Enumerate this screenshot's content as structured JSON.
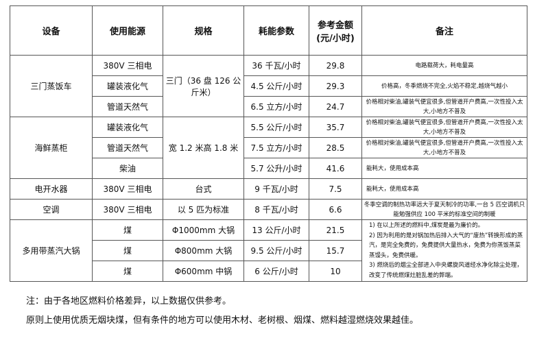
{
  "headers": [
    "设备",
    "使用能源",
    "规格",
    "耗能参数",
    "参考金额",
    "(元/小时)",
    "备注"
  ],
  "groups": [
    {
      "device": "三门蒸饭车",
      "spec": "三门（36 盘 126 公斤米）",
      "rows": [
        {
          "energy": "380V 三相电",
          "param": "36 千瓦/小时",
          "price": "29.8",
          "note": "电路载荷大，耗电量高"
        },
        {
          "energy": "罐装液化气",
          "param": "4.5 公斤/小时",
          "price": "29.3",
          "note": "价格高，冬季燃烧不完全,火焰不稳定,越烧气越小"
        },
        {
          "energy": "管道天然气",
          "param": "6.5 立方/小时",
          "price": "24.7",
          "note": "价格相对柴油,罐装气便宜很多,但管道开户费高,一次性投入太大,小地方不普及"
        }
      ]
    },
    {
      "device": "海鲜蒸柜",
      "spec": "宽 1.2 米高 1.8 米",
      "rows": [
        {
          "energy": "罐装液化气",
          "param": "5.5 公斤/小时",
          "price": "35.7",
          "note": "价格相对柴油,罐装气便宜很多,但管道开户费高,一次性投入太大,小地方不普及"
        },
        {
          "energy": "管道天然气",
          "param": "7.5 立方/小时",
          "price": "28.5",
          "note": "价格相对柴油,罐装气便宜很多,但管道开户费高,一次性投入太大,小地方不普及"
        },
        {
          "energy": "柴油",
          "param": "5.7 公升/小时",
          "price": "41.6",
          "note": "能耗大，使用成本高"
        }
      ]
    },
    {
      "device": "电开水器",
      "spec": "台式",
      "rows": [
        {
          "energy": "380V 三相电",
          "param": "9 千瓦/小时",
          "price": "7.5",
          "note": "能耗大，使用成本高"
        }
      ]
    },
    {
      "device": "空调",
      "spec": "以 5 匹为标准",
      "rows": [
        {
          "energy": "380V 三相电",
          "param": "8 千瓦/小时",
          "price": "6.6",
          "note": "冬季空调的制热功率远大于夏天制冷的功率,一台 5 匹空调机只能勉强供应 100 平米的标准空间的制暖"
        }
      ]
    },
    {
      "device": "多用带蒸汽大锅",
      "rows": [
        {
          "energy": "煤",
          "spec": "Φ1000mm 大锅",
          "param": "13 公斤/小时",
          "price": "21.5"
        },
        {
          "energy": "煤",
          "spec": "Φ800mm 大锅",
          "param": "9.5 公斤/小时",
          "price": "15.7"
        },
        {
          "energy": "煤",
          "spec": "Φ600mm 中锅",
          "param": "6 公斤/小时",
          "price": "10"
        }
      ],
      "notes": [
        "1)  在以上所述的燃料中,煤炭是最为廉价的。",
        "2)  因为利用的是对锅加热后排入大气的“废热”转换形成的蒸汽，是完全免费的，免费提供大量热水，免费为你蒸饭蒸菜蒸馒头，免费供暖。",
        "3)  燃烧后的烟尘全部进入中央螺旋风道经水净化除尘处理，改变了传统燃煤灶脏乱差的弊端。"
      ]
    }
  ],
  "footnotes": [
    "注：由于各地区燃料价格差异，以上数据仅供参考。",
    "原则上使用优质无烟块煤，但有条件的地方可以使用木材、老树根、烟煤、燃料越湿燃烧效果越佳。"
  ]
}
